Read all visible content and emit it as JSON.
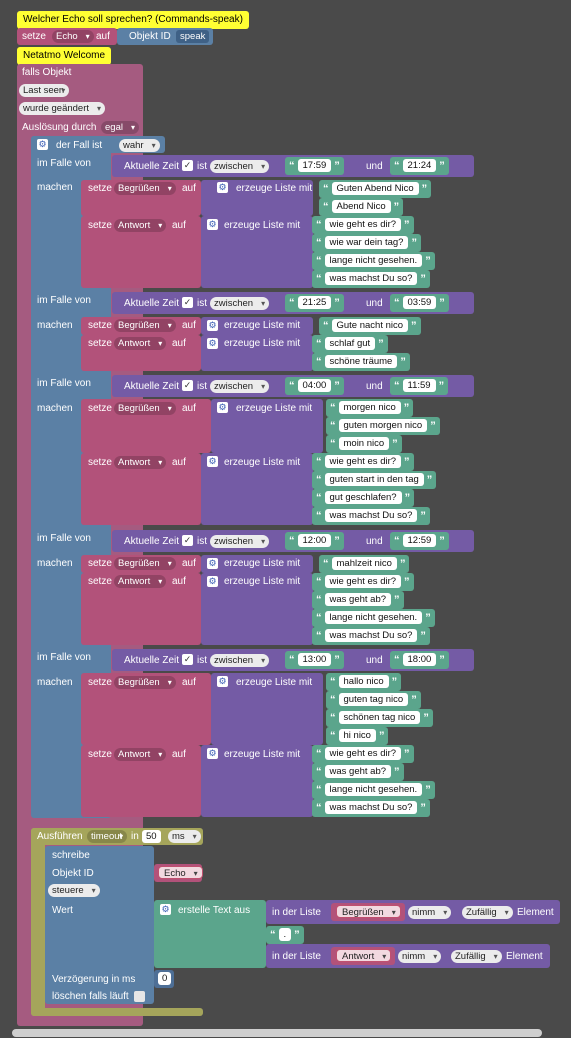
{
  "comments": {
    "top": "Welcher Echo soll sprechen? (Commands-speak)",
    "netatmo": "Netatmo Welcome"
  },
  "set_block": {
    "setze": "setze",
    "var": "Echo",
    "auf": "auf",
    "objekt_id": "Objekt ID",
    "objekt_value": "speak"
  },
  "trigger": {
    "falls_objekt": "falls Objekt",
    "last_seen": "Last seen",
    "wurde": "wurde geändert",
    "ausloesung": "Auslösung durch",
    "egal": "egal"
  },
  "switch": {
    "der_fall_ist": "der Fall ist",
    "wahr": "wahr",
    "im_falle_von": "im Falle von",
    "machen": "machen",
    "aktuelle_zeit": "Aktuelle Zeit",
    "ist": "ist",
    "zwischen": "zwischen",
    "und": "und",
    "setze": "setze",
    "auf": "auf",
    "erzeuge_liste": "erzeuge Liste mit",
    "begruessen": "Begrüßen",
    "antwort": "Antwort",
    "cases": [
      {
        "from": "17:59",
        "to": "21:24",
        "begruessen": [
          "Guten Abend Nico",
          "Abend Nico"
        ],
        "antwort": [
          "wie geht es dir?",
          "wie war dein tag?",
          "lange nicht gesehen.",
          "was machst Du so?"
        ]
      },
      {
        "from": "21:25",
        "to": "03:59",
        "begruessen": [
          "Gute nacht nico"
        ],
        "antwort": [
          "schlaf gut",
          "schöne träume"
        ]
      },
      {
        "from": "04:00",
        "to": "11:59",
        "begruessen": [
          "morgen nico",
          "guten morgen nico",
          "moin nico"
        ],
        "antwort": [
          "wie geht es dir?",
          "guten start in den tag",
          "gut geschlafen?",
          "was machst Du so?"
        ]
      },
      {
        "from": "12:00",
        "to": "12:59",
        "begruessen": [
          "mahlzeit nico"
        ],
        "antwort": [
          "wie geht es dir?",
          "was geht ab?",
          "lange nicht gesehen.",
          "was machst Du so?"
        ]
      },
      {
        "from": "13:00",
        "to": "18:00",
        "begruessen": [
          "hallo nico",
          "guten tag nico",
          "schönen tag  nico",
          "hi nico"
        ],
        "antwort": [
          "wie geht es dir?",
          "was geht ab?",
          "lange nicht gesehen.",
          "was machst Du so?"
        ]
      }
    ]
  },
  "timeout": {
    "ausfuehren": "Ausführen",
    "timeout": "timeout",
    "in": "in",
    "value": "50",
    "unit": "ms",
    "schreibe": "schreibe",
    "objekt_id": "Objekt ID",
    "echo": "Echo",
    "steuere": "steuere",
    "wert": "Wert",
    "erstelle_text": "erstelle Text aus",
    "in_der_liste": "in der Liste",
    "nimm": "nimm",
    "zufaellig": "Zufällig",
    "element": "Element",
    "separator": ". ",
    "verzoegerung": "Verzögerung in ms",
    "verzoegerung_value": "0",
    "loeschen": "löschen falls läuft"
  },
  "icons": {
    "gear": "gear-icon",
    "checkbox": "checkbox-icon",
    "dropdown": "chevron-down-icon"
  }
}
